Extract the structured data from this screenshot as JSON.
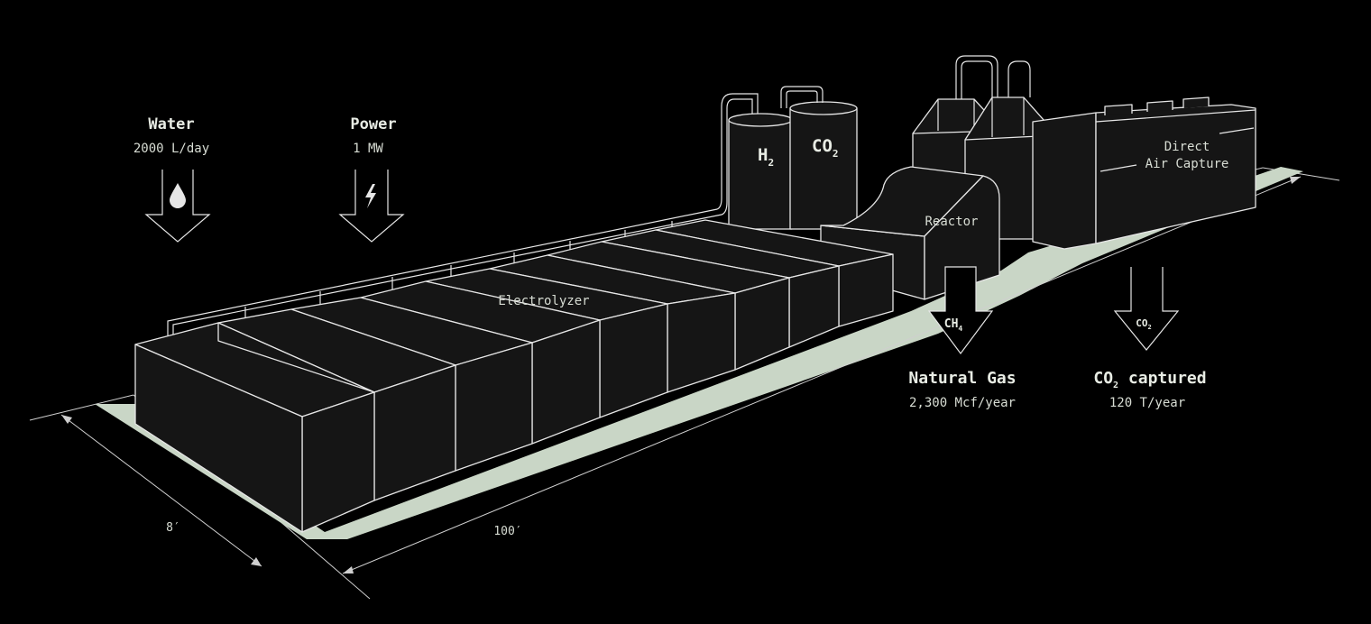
{
  "inputs": {
    "water": {
      "title": "Water",
      "value": "2000 L/day",
      "icon": "water-drop-icon"
    },
    "power": {
      "title": "Power",
      "value": "1 MW",
      "icon": "lightning-bolt-icon"
    }
  },
  "tanks": {
    "h2": {
      "base": "H",
      "sub": "2"
    },
    "co2": {
      "base": "CO",
      "sub": "2"
    }
  },
  "components": {
    "electrolyzer": "Electrolyzer",
    "reactor": "Reactor",
    "dac_line1": "Direct",
    "dac_line2": "Air Capture"
  },
  "outputs": {
    "ch4_arrow": {
      "base": "CH",
      "sub": "4"
    },
    "co2_arrow": {
      "base": "CO",
      "sub": "2"
    },
    "natural_gas": {
      "title": "Natural Gas",
      "value": "2,300 Mcf/year"
    },
    "co2_captured": {
      "base": "CO",
      "sub": "2",
      "rest": " captured",
      "value": "120 T/year"
    }
  },
  "dimensions": {
    "width": "8′",
    "length": "100′"
  },
  "colors": {
    "background": "#000000",
    "pad": "#c9d6c6",
    "stroke": "#e6e6e6",
    "box_fill": "#151515",
    "text": "#e8ece4"
  }
}
